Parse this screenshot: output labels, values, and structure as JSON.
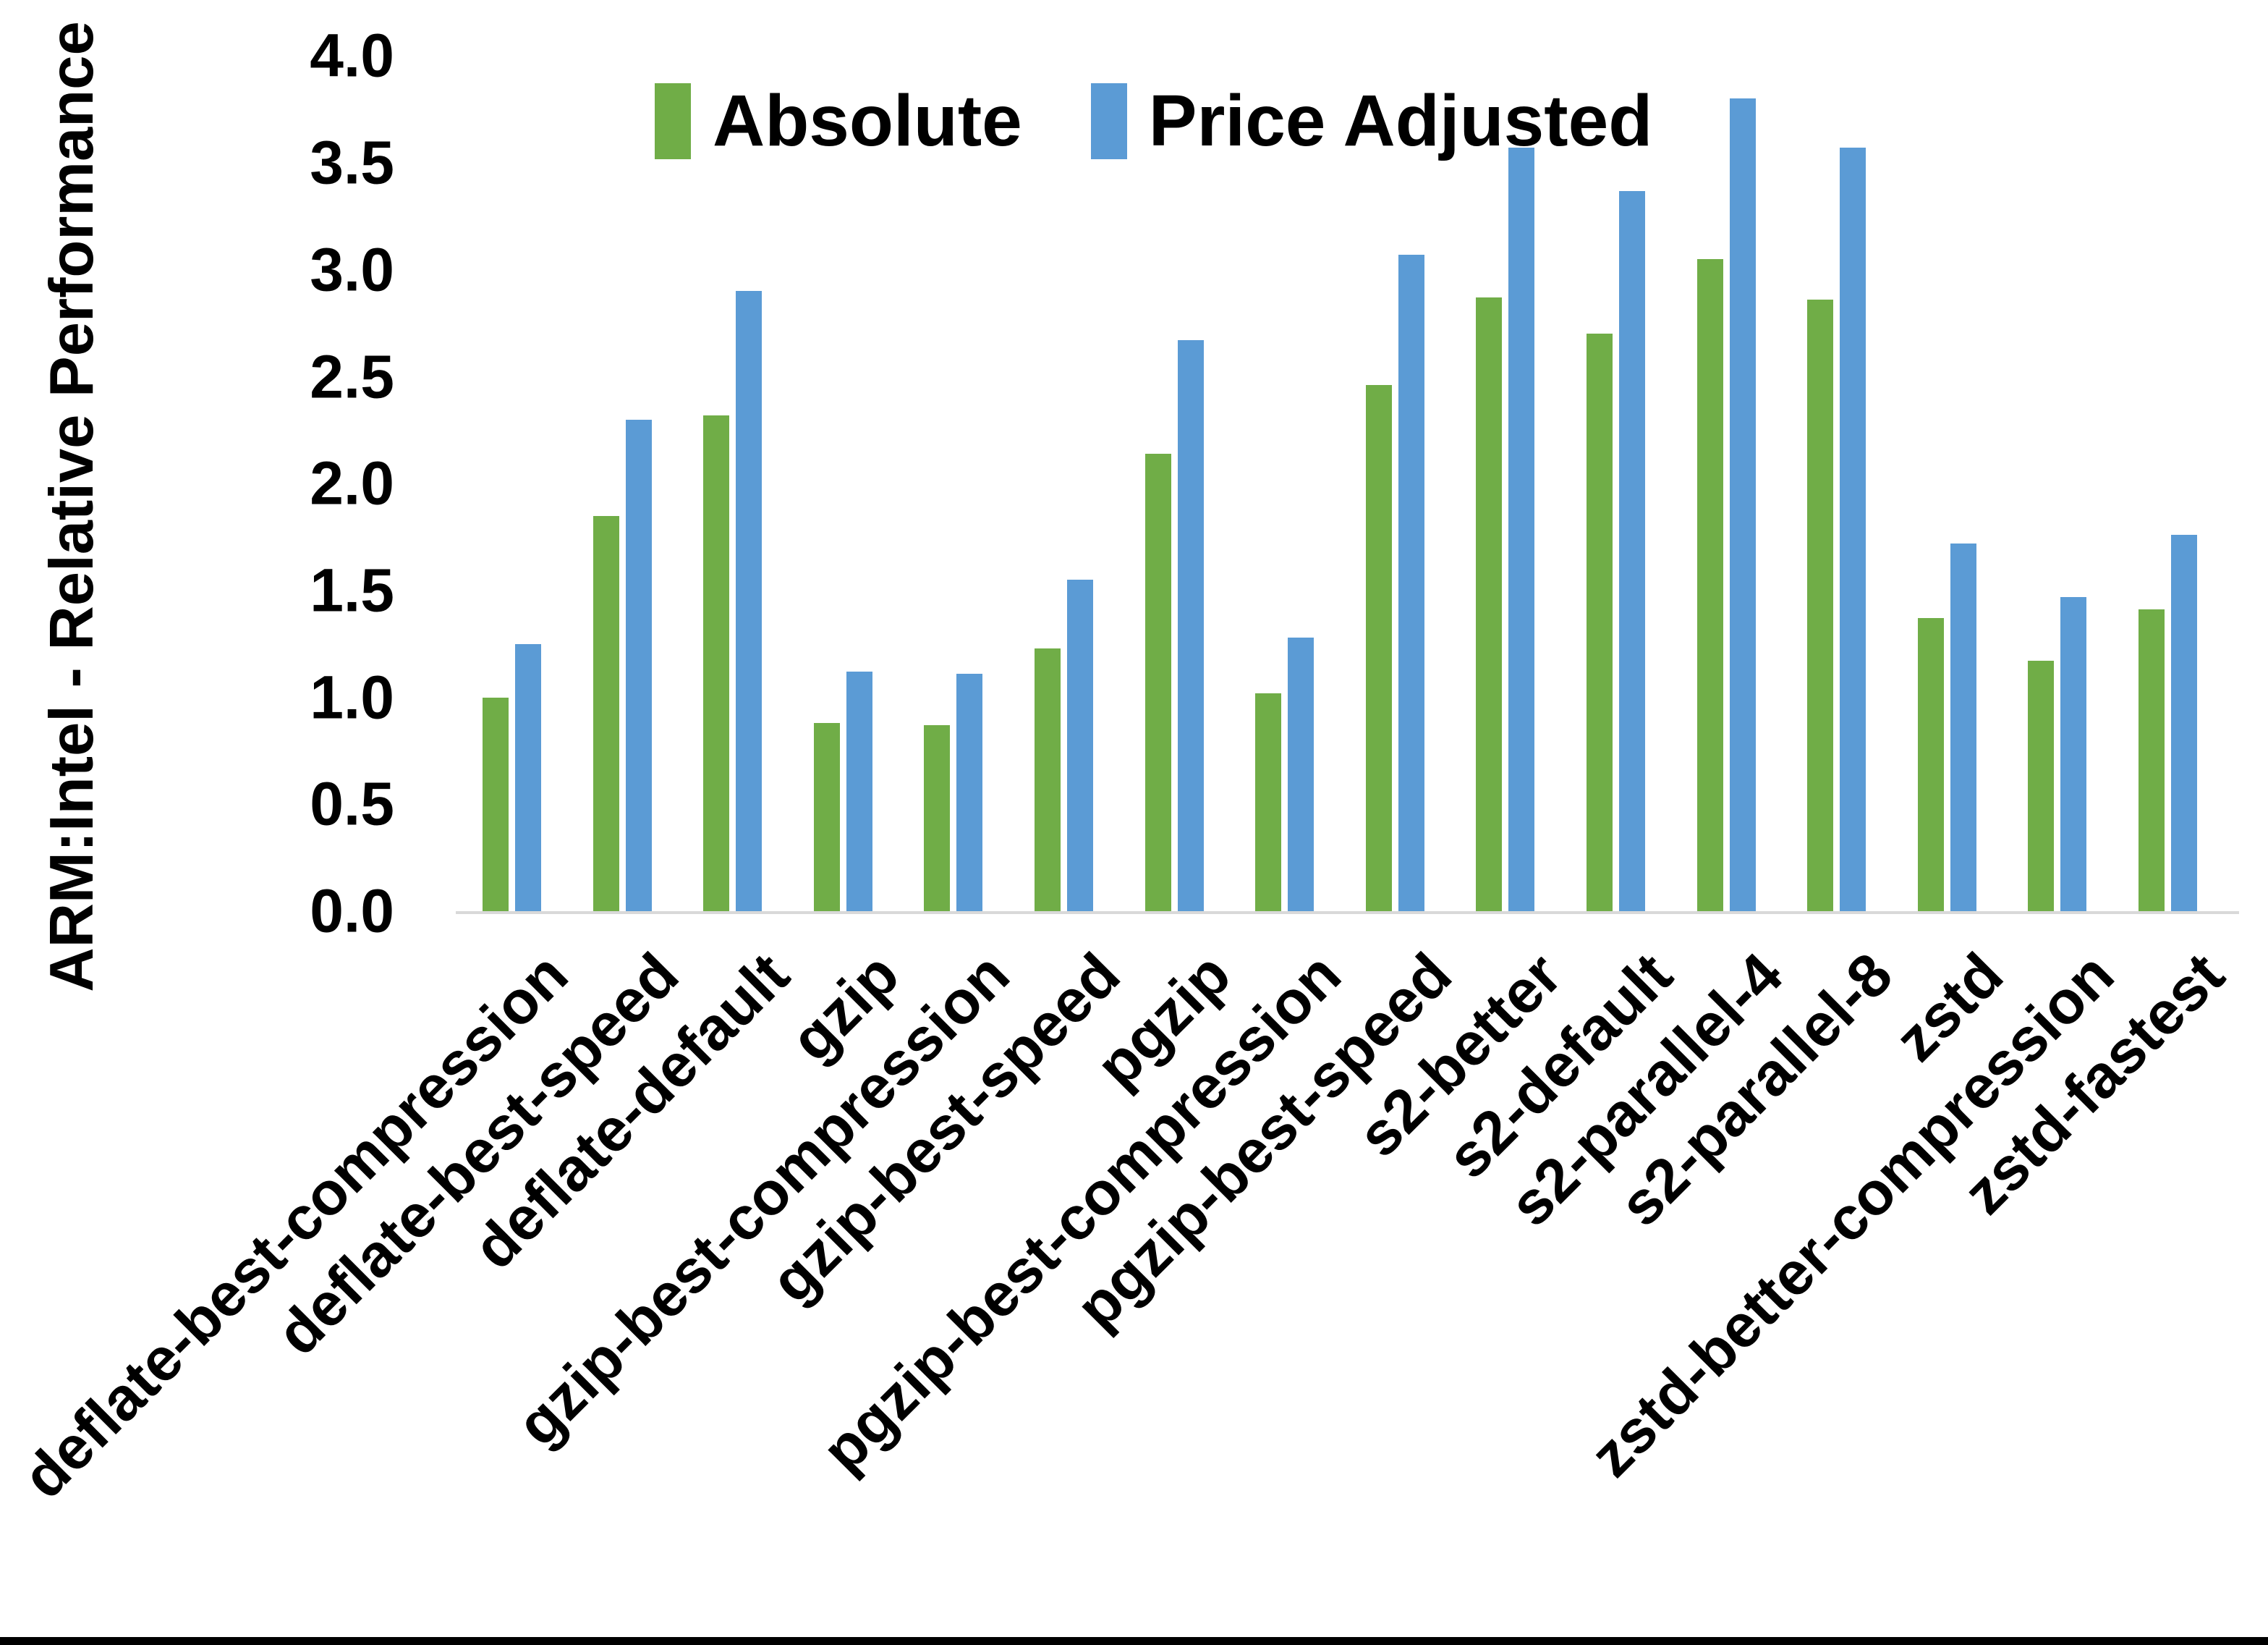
{
  "figure": {
    "background": "#ffffff",
    "bottom_border_color": "#000000",
    "axis_line_color": "#d9d9d9",
    "text_color": "#000000"
  },
  "chart_data": {
    "type": "bar",
    "title": "",
    "xlabel": "",
    "ylabel": "ARM:Intel - Relative Performance",
    "ylim": [
      0.0,
      4.0
    ],
    "ytick_step": 0.5,
    "ytick_labels": [
      "0.0",
      "0.5",
      "1.0",
      "1.5",
      "2.0",
      "2.5",
      "3.0",
      "3.5",
      "4.0"
    ],
    "grid": false,
    "legend_position": "top-center",
    "categories": [
      "deflate-best-compression",
      "deflate-best-speed",
      "deflate-default",
      "gzip",
      "gzip-best-compression",
      "gzip-best-speed",
      "pgzip",
      "pgzip-best-compression",
      "pgzip-best-speed",
      "s2-better",
      "s2-default",
      "s2-parallel-4",
      "s2-parallel-8",
      "zstd",
      "zstd-better-compression",
      "zstd-fastest"
    ],
    "series": [
      {
        "name": "Absolute",
        "color": "#70AD47",
        "values": [
          1.0,
          1.85,
          2.32,
          0.88,
          0.87,
          1.23,
          2.14,
          1.02,
          2.46,
          2.87,
          2.7,
          3.05,
          2.86,
          1.37,
          1.17,
          1.41
        ]
      },
      {
        "name": "Price Adjusted",
        "color": "#5B9BD5",
        "values": [
          1.25,
          2.3,
          2.9,
          1.12,
          1.11,
          1.55,
          2.67,
          1.28,
          3.07,
          3.57,
          3.37,
          3.8,
          3.57,
          1.72,
          1.47,
          1.76
        ]
      }
    ]
  }
}
